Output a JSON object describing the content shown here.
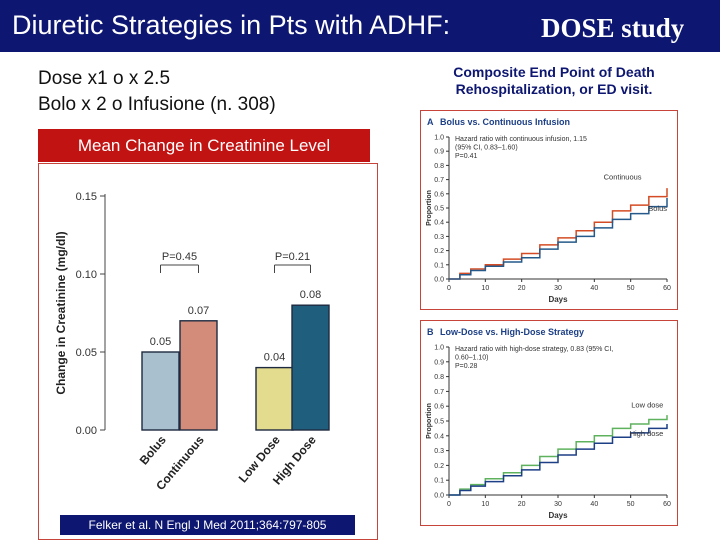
{
  "slide": {
    "title_main": "Diuretic Strategies in Pts with ADHF:",
    "title_emph": "DOSE study",
    "line1": "Dose x1  o x 2.5",
    "line2": "Bolo  x 2 o Infusione (n. 308)",
    "creatinine_banner": "Mean Change in Creatinine Level",
    "reference": "Felker et al. N Engl J Med 2011;364:797-805",
    "composite_title": "Composite End Point of Death Rehospitalization, or ED visit.",
    "colors": {
      "title_bg": "#0d1670",
      "banner_red": "#c21313",
      "bolus": "#a9c0ce",
      "continuous": "#d38c7a",
      "low_dose": "#e3dc8f",
      "high_dose": "#1f5f7d",
      "km_bolus": "#24598a",
      "km_continuous": "#d34c25",
      "km_low_dose": "#5fb25d",
      "km_high_dose": "#1c3f86"
    }
  },
  "chart_data": [
    {
      "type": "bar",
      "title": "Mean Change in Creatinine Level",
      "ylabel": "Change in Creatinine (mg/dl)",
      "ylim": [
        0,
        0.15
      ],
      "yticks": [
        "0.00",
        "0.05",
        "0.10",
        "0.15"
      ],
      "categories": [
        "Bolus",
        "Continuous",
        "Low Dose",
        "High Dose"
      ],
      "values": [
        0.05,
        0.07,
        0.04,
        0.08
      ],
      "value_labels": [
        "0.05",
        "0.07",
        "0.04",
        "0.08"
      ],
      "comparisons": [
        {
          "label": "P=0.45",
          "between": [
            "Bolus",
            "Continuous"
          ]
        },
        {
          "label": "P=0.21",
          "between": [
            "Low Dose",
            "High Dose"
          ]
        }
      ]
    },
    {
      "type": "line",
      "panel": "A",
      "title": "Bolus vs. Continuous Infusion",
      "xlabel": "Days",
      "ylabel": "Proportion",
      "xlim": [
        0,
        60
      ],
      "ylim": [
        0,
        1.0
      ],
      "xticks": [
        "0",
        "10",
        "20",
        "30",
        "40",
        "50",
        "60"
      ],
      "yticks": [
        "0.0",
        "0.1",
        "0.2",
        "0.3",
        "0.4",
        "0.5",
        "0.6",
        "0.7",
        "0.8",
        "0.9",
        "1.0"
      ],
      "annotation": [
        "Hazard ratio with continuous infusion, 1.15",
        "(95% CI, 0.83–1.60)",
        "P=0.41"
      ],
      "series": [
        {
          "name": "Continuous",
          "x": [
            0,
            3,
            6,
            10,
            15,
            20,
            25,
            30,
            35,
            40,
            45,
            50,
            55,
            60
          ],
          "y": [
            0.0,
            0.04,
            0.07,
            0.1,
            0.14,
            0.18,
            0.24,
            0.29,
            0.34,
            0.4,
            0.48,
            0.52,
            0.58,
            0.64
          ]
        },
        {
          "name": "Bolus",
          "x": [
            0,
            3,
            6,
            10,
            15,
            20,
            25,
            30,
            35,
            40,
            45,
            50,
            55,
            60
          ],
          "y": [
            0.0,
            0.03,
            0.06,
            0.09,
            0.12,
            0.15,
            0.21,
            0.26,
            0.3,
            0.36,
            0.42,
            0.46,
            0.51,
            0.57
          ]
        }
      ]
    },
    {
      "type": "line",
      "panel": "B",
      "title": "Low-Dose vs. High-Dose Strategy",
      "xlabel": "Days",
      "ylabel": "Proportion",
      "xlim": [
        0,
        60
      ],
      "ylim": [
        0,
        1.0
      ],
      "xticks": [
        "0",
        "10",
        "20",
        "30",
        "40",
        "50",
        "60"
      ],
      "yticks": [
        "0.0",
        "0.1",
        "0.2",
        "0.3",
        "0.4",
        "0.5",
        "0.6",
        "0.7",
        "0.8",
        "0.9",
        "1.0"
      ],
      "annotation": [
        "Hazard ratio with high-dose strategy, 0.83 (95% CI,",
        "0.60–1.10)",
        "P=0.28"
      ],
      "series": [
        {
          "name": "Low dose",
          "x": [
            0,
            3,
            6,
            10,
            15,
            20,
            25,
            30,
            35,
            40,
            45,
            50,
            55,
            60
          ],
          "y": [
            0.0,
            0.04,
            0.07,
            0.11,
            0.15,
            0.2,
            0.26,
            0.31,
            0.36,
            0.4,
            0.45,
            0.48,
            0.51,
            0.54
          ]
        },
        {
          "name": "High dose",
          "x": [
            0,
            3,
            6,
            10,
            15,
            20,
            25,
            30,
            35,
            40,
            45,
            50,
            55,
            60
          ],
          "y": [
            0.0,
            0.03,
            0.06,
            0.09,
            0.13,
            0.17,
            0.22,
            0.27,
            0.31,
            0.35,
            0.39,
            0.42,
            0.45,
            0.48
          ]
        }
      ]
    }
  ]
}
